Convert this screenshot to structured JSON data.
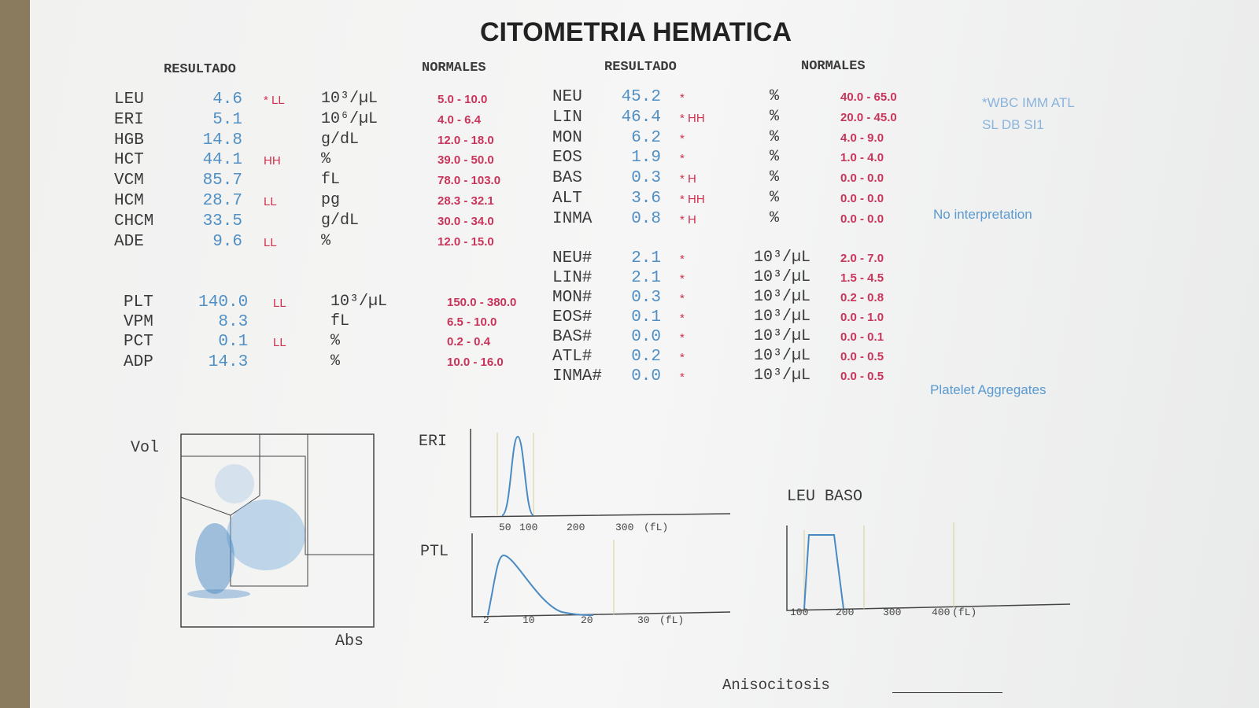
{
  "title": "CITOMETRIA HEMATICA",
  "headers": {
    "left_result": "RESULTADO",
    "left_normal": "NORMALES",
    "right_result": "RESULTADO",
    "right_normal": "NORMALES"
  },
  "left_rows": [
    [
      "LEU",
      "4.6",
      "* LL",
      "10³/µL",
      "5.0 - 10.0"
    ],
    [
      "ERI",
      "5.1",
      "",
      "10⁶/µL",
      "4.0 - 6.4"
    ],
    [
      "HGB",
      "14.8",
      "",
      "g/dL",
      "12.0 - 18.0"
    ],
    [
      "HCT",
      "44.1",
      "HH",
      "%",
      "39.0 - 50.0"
    ],
    [
      "VCM",
      "85.7",
      "",
      "fL",
      "78.0 - 103.0"
    ],
    [
      "HCM",
      "28.7",
      "LL",
      "pg",
      "28.3 - 32.1"
    ],
    [
      "CHCM",
      "33.5",
      "",
      "g/dL",
      "30.0 - 34.0"
    ],
    [
      "ADE",
      "9.6",
      "LL",
      "%",
      "12.0 - 15.0"
    ],
    [
      "PLT",
      "140.0",
      "LL",
      "10³/µL",
      "150.0 - 380.0"
    ],
    [
      "VPM",
      "8.3",
      "",
      "fL",
      "6.5 - 10.0"
    ],
    [
      "PCT",
      "0.1",
      "LL",
      "%",
      "0.2 - 0.4"
    ],
    [
      "ADP",
      "14.3",
      "",
      "%",
      "10.0 - 16.0"
    ]
  ],
  "right_rows": [
    [
      "NEU",
      "45.2",
      "*",
      "%",
      "40.0 - 65.0"
    ],
    [
      "LIN",
      "46.4",
      "* HH",
      "%",
      "20.0 - 45.0"
    ],
    [
      "MON",
      "6.2",
      "*",
      "%",
      "4.0 - 9.0"
    ],
    [
      "EOS",
      "1.9",
      "*",
      "%",
      "1.0 - 4.0"
    ],
    [
      "BAS",
      "0.3",
      "* H",
      "%",
      "0.0 - 0.0"
    ],
    [
      "ALT",
      "3.6",
      "* HH",
      "%",
      "0.0 - 0.0"
    ],
    [
      "INMA",
      "0.8",
      "* H",
      "%",
      "0.0 - 0.0"
    ],
    [
      "NEU#",
      "2.1",
      "*",
      "10³/µL",
      "2.0 - 7.0"
    ],
    [
      "LIN#",
      "2.1",
      "*",
      "10³/µL",
      "1.5 - 4.5"
    ],
    [
      "MON#",
      "0.3",
      "*",
      "10³/µL",
      "0.2 - 0.8"
    ],
    [
      "EOS#",
      "0.1",
      "*",
      "10³/µL",
      "0.0 - 1.0"
    ],
    [
      "BAS#",
      "0.0",
      "*",
      "10³/µL",
      "0.0 - 0.1"
    ],
    [
      "ATL#",
      "0.2",
      "*",
      "10³/µL",
      "0.0 - 0.5"
    ],
    [
      "INMA#",
      "0.0",
      "*",
      "10³/µL",
      "0.0 - 0.5"
    ]
  ],
  "notes": {
    "flags_1": "*WBC IMM ATL",
    "flags_2": "SL DB SI1",
    "interpretation": "No interpretation",
    "platelet": "Platelet Aggregates"
  },
  "plots": {
    "scatter_y": "Vol",
    "scatter_x": "Abs",
    "eri": {
      "label": "ERI",
      "ticks": [
        "50",
        "100",
        "200",
        "300",
        "(fL)"
      ]
    },
    "ptl": {
      "label": "PTL",
      "ticks": [
        "2",
        "10",
        "20",
        "30",
        "(fL)"
      ]
    },
    "leu": {
      "label": "LEU BASO",
      "ticks": [
        "100",
        "200",
        "300",
        "400",
        "(fL)"
      ]
    }
  },
  "footer": {
    "anisocitosis": "Anisocitosis"
  }
}
